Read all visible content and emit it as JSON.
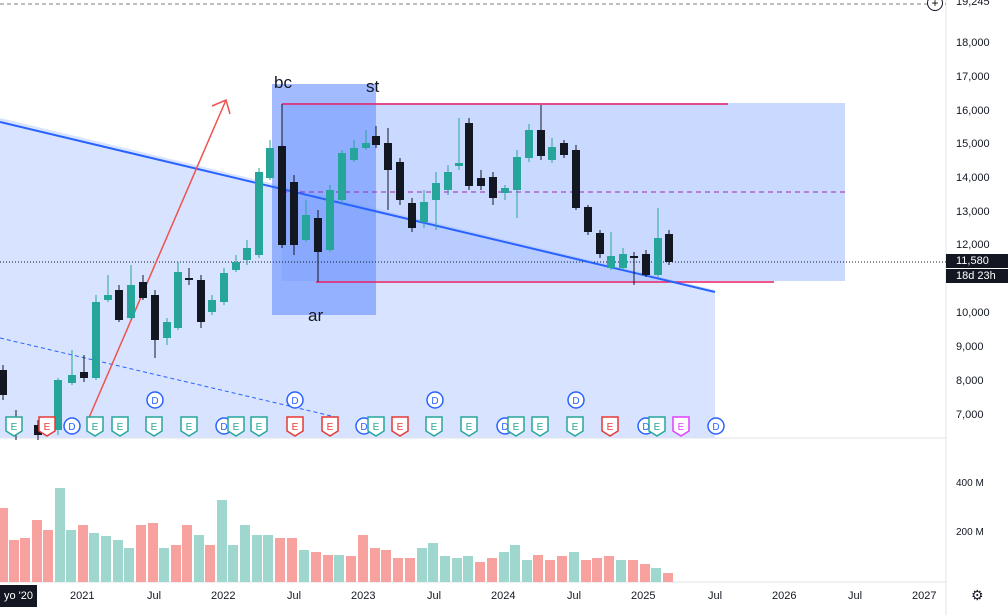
{
  "chart": {
    "price_ticks": [
      "18,000",
      "17,000",
      "16,000",
      "15,000",
      "14,000",
      "13,000",
      "12,000",
      "10,000",
      "9,000",
      "8,000",
      "7,000"
    ],
    "top_value": "19,245",
    "current_price": "11,580",
    "countdown": "18d 23h",
    "volume_ticks": [
      "400 M",
      "200 M"
    ],
    "x_labels": [
      "2021",
      "Jul",
      "2022",
      "Jul",
      "2023",
      "Jul",
      "2024",
      "Jul",
      "2025",
      "Jul",
      "2026",
      "Jul",
      "2027"
    ],
    "first_label": "yo '20",
    "annotations": {
      "bc": "bc",
      "st": "st",
      "ar": "ar"
    },
    "event_D": "D",
    "event_E": "E"
  },
  "chart_data": {
    "type": "candlestick",
    "ylim": [
      6500,
      19245
    ],
    "candles": [
      [
        10650,
        10750,
        11200,
        10400
      ],
      [
        10750,
        11200,
        11400,
        10700
      ],
      [
        11200,
        11300,
        11500,
        10900
      ],
      [
        11300,
        12900,
        13100,
        11200
      ],
      [
        12900,
        13300,
        13400,
        12200
      ],
      [
        13300,
        14800,
        15000,
        13100
      ],
      [
        14800,
        15400,
        15600,
        14500
      ],
      [
        15400,
        15200,
        15700,
        14900
      ],
      [
        15200,
        15600,
        16100,
        15000
      ]
    ],
    "colors": {
      "up": "#26a69a",
      "down": "#131722",
      "volume_up": "#9fd6cd",
      "volume_down": "#f7a29e",
      "trend": "#2962ff",
      "box": "#2962ff",
      "range_line": "#e91e63",
      "arrow": "#ef5350"
    }
  }
}
